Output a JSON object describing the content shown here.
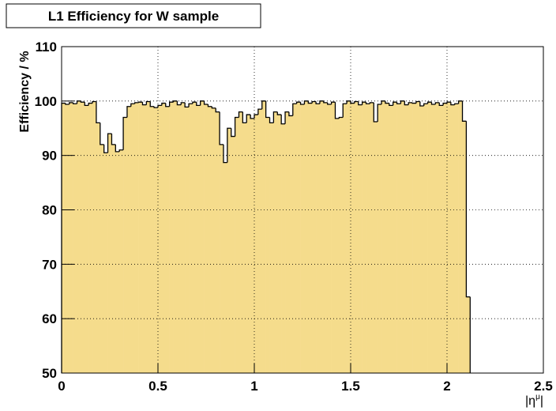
{
  "chart_data": {
    "type": "histogram",
    "title": "L1 Efficiency for W sample",
    "ylabel": "Efficiency / %",
    "xlabel_parts": [
      "|η",
      "μ",
      "|"
    ],
    "color": "#f5dc8c",
    "edge_color": "#000000",
    "grid": true,
    "xlim": [
      0,
      2.5
    ],
    "ylim": [
      50,
      110
    ],
    "xticks": [
      0,
      0.5,
      1,
      1.5,
      2,
      2.5
    ],
    "yticks": [
      50,
      60,
      70,
      80,
      90,
      100,
      110
    ],
    "bins": [
      0,
      0.02,
      0.04,
      0.06,
      0.08,
      0.1,
      0.12,
      0.14,
      0.16,
      0.18,
      0.2,
      0.22,
      0.24,
      0.26,
      0.28,
      0.3,
      0.32,
      0.34,
      0.36,
      0.38,
      0.4,
      0.42,
      0.44,
      0.46,
      0.48,
      0.5,
      0.52,
      0.54,
      0.56,
      0.58,
      0.6,
      0.62,
      0.64,
      0.66,
      0.68,
      0.7,
      0.72,
      0.74,
      0.76,
      0.78,
      0.8,
      0.82,
      0.84,
      0.86,
      0.88,
      0.9,
      0.92,
      0.94,
      0.96,
      0.98,
      1,
      1.02,
      1.04,
      1.06,
      1.08,
      1.1,
      1.12,
      1.14,
      1.16,
      1.18,
      1.2,
      1.22,
      1.24,
      1.26,
      1.28,
      1.3,
      1.32,
      1.34,
      1.36,
      1.38,
      1.4,
      1.42,
      1.44,
      1.46,
      1.48,
      1.5,
      1.52,
      1.54,
      1.56,
      1.58,
      1.6,
      1.62,
      1.64,
      1.66,
      1.68,
      1.7,
      1.72,
      1.74,
      1.76,
      1.78,
      1.8,
      1.82,
      1.84,
      1.86,
      1.88,
      1.9,
      1.92,
      1.94,
      1.96,
      1.98,
      2,
      2.02,
      2.04,
      2.06,
      2.08,
      2.1,
      2.12
    ],
    "values": [
      99.6,
      99.4,
      99.7,
      99.5,
      100,
      99.8,
      99.2,
      99.6,
      99.9,
      96,
      92,
      90.5,
      94,
      92,
      90.7,
      91,
      97,
      99,
      99.5,
      99.7,
      99.8,
      99.3,
      99.9,
      99.0,
      98.8,
      99.2,
      99.6,
      99.0,
      99.8,
      100,
      99.3,
      99.7,
      98.9,
      99.5,
      99.8,
      99.2,
      100,
      99.4,
      99.0,
      98.7,
      98,
      92,
      88.7,
      95,
      93.5,
      97,
      98,
      96,
      97.5,
      96.8,
      97.5,
      98.5,
      100,
      97,
      96,
      98,
      97.5,
      95.8,
      98,
      97.3,
      99.5,
      99.8,
      99.4,
      100,
      99.6,
      99.9,
      99.5,
      100,
      99.7,
      99.4,
      99.8,
      96.8,
      97,
      99.5,
      100,
      99.6,
      99.9,
      99.3,
      99.8,
      99.5,
      99.7,
      96.2,
      99.4,
      100,
      99.6,
      99.2,
      99.8,
      99.5,
      100,
      99.3,
      99.7,
      99.6,
      99.9,
      99.1,
      99.5,
      99.8,
      99.4,
      99.7,
      99.2,
      99.6,
      99.8,
      99.3,
      99.5,
      100,
      96.3,
      64
    ]
  }
}
